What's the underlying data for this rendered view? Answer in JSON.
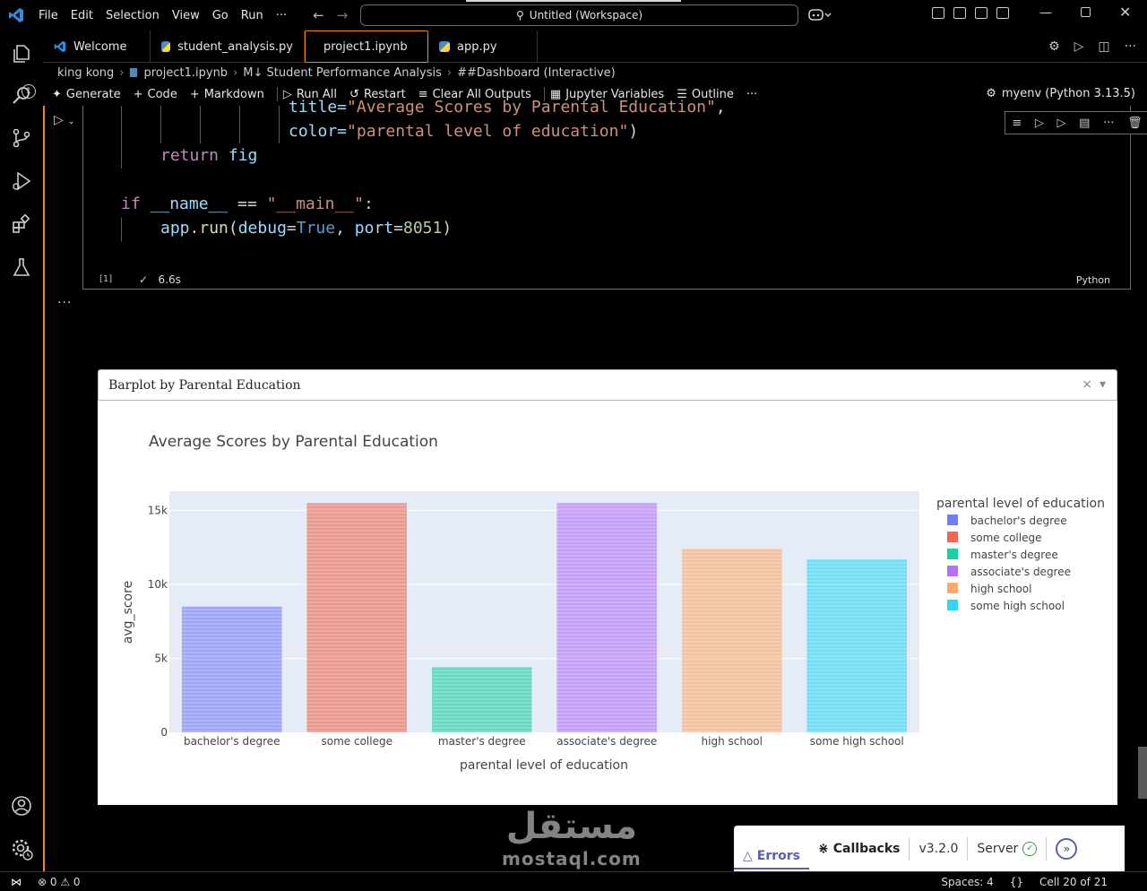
{
  "titlebar": {
    "menu": [
      "File",
      "Edit",
      "Selection",
      "View",
      "Go",
      "Run",
      "···"
    ],
    "command_center": "Untitled (Workspace)"
  },
  "tabs": [
    {
      "label": "Welcome",
      "icon": "vscode-logo-icon"
    },
    {
      "label": "student_analysis.py",
      "icon": "python-icon"
    },
    {
      "label": "project1.ipynb",
      "icon": "notebook-icon",
      "active": true,
      "modified": true
    },
    {
      "label": "app.py",
      "icon": "python-icon"
    }
  ],
  "breadcrumb": [
    "king kong",
    "project1.ipynb",
    "M↓ Student Performance Analysis",
    "##Dashboard (Interactive)"
  ],
  "toolbar": {
    "generate": "Generate",
    "code": "Code",
    "markdown": "Markdown",
    "run_all": "Run All",
    "restart": "Restart",
    "clear_outputs": "Clear All Outputs",
    "variables": "Jupyter Variables",
    "outline": "Outline",
    "more": "···",
    "kernel": "myenv (Python 3.13.5)"
  },
  "cell": {
    "code": {
      "l1_a": "title=",
      "l1_b": "\"Average Scores by Parental Education\"",
      "l1_c": ",",
      "l2_a": "color=",
      "l2_b": "\"parental level of education\"",
      "l2_c": ")",
      "l3_a": "return ",
      "l3_b": "fig",
      "l4_a": "if ",
      "l4_b": "__name__",
      "l4_c": " == ",
      "l4_d": "\"__main__\"",
      "l4_e": ":",
      "l5_a": "app",
      "l5_b": ".",
      "l5_c": "run",
      "l5_d": "(",
      "l5_e": "debug",
      "l5_f": "=",
      "l5_g": "True",
      "l5_h": ", ",
      "l5_i": "port",
      "l5_j": "=",
      "l5_k": "8051",
      "l5_l": ")"
    },
    "exec_count": "[1]",
    "exec_time": "6.6s",
    "language": "Python",
    "output_menu": "···"
  },
  "dash": {
    "header_title": "Barplot by Parental Education",
    "close": "×",
    "collapse": "▾"
  },
  "chart_data": {
    "type": "bar",
    "title": "Average Scores by Parental Education",
    "xlabel": "parental level of education",
    "ylabel": "avg_score",
    "categories": [
      "bachelor's degree",
      "some college",
      "master's degree",
      "associate's degree",
      "high school",
      "some high school"
    ],
    "values": [
      8500,
      15500,
      4400,
      15500,
      12400,
      11700
    ],
    "colors": [
      "#636efa",
      "#ef553b",
      "#00cc96",
      "#ab63fa",
      "#ffa15a",
      "#19d3f3"
    ],
    "yticks": [
      {
        "v": 0,
        "label": "0"
      },
      {
        "v": 5000,
        "label": "5k"
      },
      {
        "v": 10000,
        "label": "10k"
      },
      {
        "v": 15000,
        "label": "15k"
      }
    ],
    "ylim": [
      0,
      16300
    ],
    "legend_title": "parental level of education",
    "legend_placement": "right",
    "grid": true
  },
  "devtools": {
    "errors": "Errors",
    "callbacks": "Callbacks",
    "version": "v3.2.0",
    "server": "Server"
  },
  "watermark": {
    "arabic": "مستقل",
    "latin": "mostaql.com"
  },
  "status": {
    "problems": "⊗ 0 ⚠ 0",
    "spaces": "Spaces: 4",
    "braces": "{}",
    "cell": "Cell 20 of 21"
  }
}
